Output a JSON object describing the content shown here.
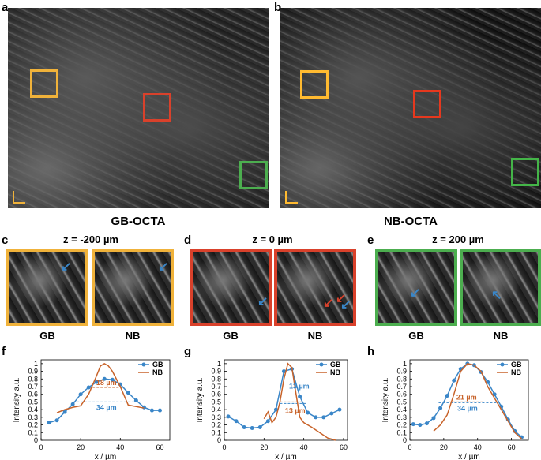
{
  "colors": {
    "yellow": "#f0b23a",
    "red": "#d9412b",
    "green": "#4cae4f",
    "blue": "#3a86c8",
    "orange": "#c8632a"
  },
  "panels": {
    "a": {
      "label": "a",
      "title": "GB-OCTA"
    },
    "b": {
      "label": "b",
      "title": "NB-OCTA"
    },
    "c": {
      "label": "c",
      "title": "z = -200 µm",
      "left": "GB",
      "right": "NB"
    },
    "d": {
      "label": "d",
      "title": "z = 0 µm",
      "left": "GB",
      "right": "NB"
    },
    "e": {
      "label": "e",
      "title": "z = 200 µm",
      "left": "GB",
      "right": "NB"
    },
    "f": {
      "label": "f"
    },
    "g": {
      "label": "g"
    },
    "h": {
      "label": "h"
    }
  },
  "icons": {
    "scale_bar": "scale-bar-icon",
    "arrow": "arrow-icon"
  },
  "chart_data": [
    {
      "type": "line",
      "id": "f",
      "xlabel": "x / µm",
      "ylabel": "Intensity a.u.",
      "xlim": [
        0,
        65
      ],
      "ylim": [
        0,
        1.05
      ],
      "xticks": [
        0,
        20,
        40,
        60
      ],
      "yticks": [
        0,
        0.1,
        0.2,
        0.3,
        0.4,
        0.5,
        0.6,
        0.7,
        0.8,
        0.9,
        1
      ],
      "legend": "top-right",
      "series": [
        {
          "name": "GB",
          "color": "#3a86c8",
          "marker": true,
          "x": [
            4,
            8,
            12,
            16,
            20,
            24,
            28,
            32,
            36,
            40,
            44,
            48,
            52,
            56,
            60
          ],
          "y": [
            0.23,
            0.26,
            0.37,
            0.47,
            0.6,
            0.69,
            0.76,
            0.8,
            0.79,
            0.73,
            0.62,
            0.52,
            0.43,
            0.39,
            0.39
          ]
        },
        {
          "name": "NB",
          "color": "#c8632a",
          "marker": false,
          "x": [
            8,
            12,
            16,
            20,
            24,
            28,
            30,
            32,
            34,
            36,
            40,
            44,
            48,
            52
          ],
          "y": [
            0.36,
            0.4,
            0.43,
            0.45,
            0.6,
            0.84,
            0.97,
            1.0,
            0.97,
            0.9,
            0.7,
            0.46,
            0.44,
            0.42
          ]
        }
      ],
      "annotations": [
        {
          "text": "18 µm",
          "color": "#c8632a",
          "x1": 24,
          "x2": 42,
          "y": 0.69
        },
        {
          "text": "34 µm",
          "color": "#3a86c8",
          "x1": 16,
          "x2": 50,
          "y": 0.5
        }
      ]
    },
    {
      "type": "line",
      "id": "g",
      "xlabel": "x / µm",
      "ylabel": "Intensity a.u.",
      "xlim": [
        0,
        62
      ],
      "ylim": [
        0,
        1.05
      ],
      "xticks": [
        0,
        20,
        40,
        60
      ],
      "yticks": [
        0,
        0.1,
        0.2,
        0.3,
        0.4,
        0.5,
        0.6,
        0.7,
        0.8,
        0.9,
        1
      ],
      "legend": "top-right",
      "series": [
        {
          "name": "GB",
          "color": "#3a86c8",
          "marker": true,
          "x": [
            2,
            6,
            10,
            14,
            18,
            22,
            26,
            30,
            34,
            38,
            42,
            46,
            50,
            54,
            58
          ],
          "y": [
            0.31,
            0.25,
            0.17,
            0.16,
            0.17,
            0.25,
            0.4,
            0.9,
            0.93,
            0.57,
            0.36,
            0.3,
            0.3,
            0.35,
            0.4
          ]
        },
        {
          "name": "NB",
          "color": "#c8632a",
          "marker": false,
          "x": [
            20,
            22,
            24,
            26,
            28,
            30,
            32,
            34,
            36,
            38,
            40,
            44,
            48,
            52,
            56
          ],
          "y": [
            0.28,
            0.37,
            0.23,
            0.3,
            0.5,
            0.8,
            1.0,
            0.95,
            0.62,
            0.3,
            0.23,
            0.17,
            0.1,
            0.03,
            0.0
          ]
        }
      ],
      "annotations": [
        {
          "text": "13 µm",
          "color": "#3a86c8",
          "x1": 28,
          "x2": 41,
          "y": 0.48
        },
        {
          "text": "13 µm",
          "color": "#c8632a",
          "x1": 26,
          "x2": 39,
          "y": 0.5
        }
      ]
    },
    {
      "type": "line",
      "id": "h",
      "xlabel": "x / µm",
      "ylabel": "Intensity a.u.",
      "xlim": [
        0,
        70
      ],
      "ylim": [
        0,
        1.05
      ],
      "xticks": [
        0,
        20,
        40,
        60
      ],
      "yticks": [
        0,
        0.1,
        0.2,
        0.3,
        0.4,
        0.5,
        0.6,
        0.7,
        0.8,
        0.9,
        1
      ],
      "legend": "top-right",
      "series": [
        {
          "name": "GB",
          "color": "#3a86c8",
          "marker": true,
          "x": [
            2,
            6,
            10,
            14,
            18,
            22,
            26,
            30,
            34,
            38,
            42,
            46,
            50,
            54,
            58,
            62,
            66
          ],
          "y": [
            0.21,
            0.2,
            0.22,
            0.29,
            0.42,
            0.58,
            0.78,
            0.93,
            1.0,
            0.98,
            0.89,
            0.76,
            0.6,
            0.44,
            0.27,
            0.12,
            0.04
          ]
        },
        {
          "name": "NB",
          "color": "#c8632a",
          "marker": false,
          "x": [
            14,
            18,
            22,
            26,
            30,
            34,
            38,
            42,
            46,
            50,
            54,
            58,
            62,
            66
          ],
          "y": [
            0.12,
            0.2,
            0.33,
            0.6,
            0.9,
            1.0,
            0.98,
            0.9,
            0.7,
            0.55,
            0.4,
            0.25,
            0.1,
            0.02
          ]
        }
      ],
      "annotations": [
        {
          "text": "21 µm",
          "color": "#c8632a",
          "x1": 23,
          "x2": 44,
          "y": 0.5
        },
        {
          "text": "34 µm",
          "color": "#3a86c8",
          "x1": 17,
          "x2": 51,
          "y": 0.49
        }
      ]
    }
  ]
}
